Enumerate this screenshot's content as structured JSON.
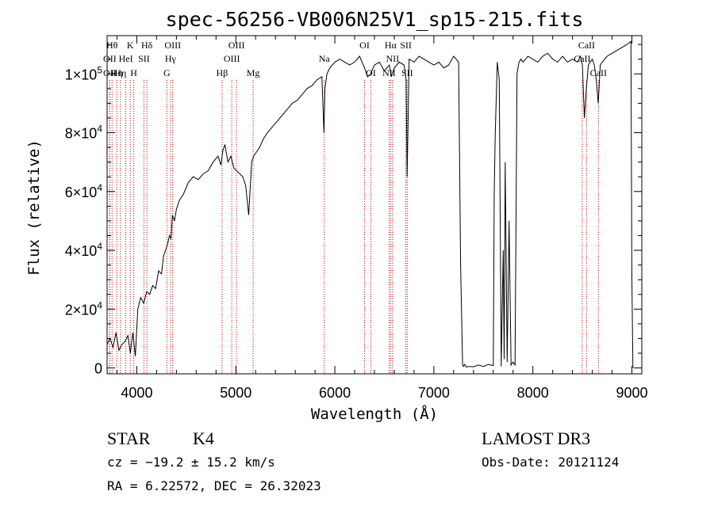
{
  "chart_data": {
    "type": "line",
    "title": "spec-56256-VB006N25V1_sp15-215.fits",
    "xlabel": "Wavelength (Å)",
    "ylabel": "Flux (relative)",
    "xlim": [
      3700,
      9100
    ],
    "ylim": [
      -2000,
      113000
    ],
    "x_ticks": [
      {
        "value": 4000,
        "label": "4000"
      },
      {
        "value": 5000,
        "label": "5000"
      },
      {
        "value": 6000,
        "label": "6000"
      },
      {
        "value": 7000,
        "label": "7000"
      },
      {
        "value": 8000,
        "label": "8000"
      },
      {
        "value": 9000,
        "label": "9000"
      }
    ],
    "y_ticks": [
      {
        "value": 0,
        "mant": "0",
        "exp": ""
      },
      {
        "value": 20000,
        "mant": "2×10",
        "exp": "4"
      },
      {
        "value": 40000,
        "mant": "4×10",
        "exp": "4"
      },
      {
        "value": 60000,
        "mant": "6×10",
        "exp": "4"
      },
      {
        "value": 80000,
        "mant": "8×10",
        "exp": "4"
      },
      {
        "value": 100000,
        "mant": "1×10",
        "exp": "5"
      }
    ],
    "series": [
      {
        "name": "flux",
        "x": [
          3700,
          3730,
          3760,
          3790,
          3820,
          3850,
          3880,
          3910,
          3935,
          3960,
          3985,
          4010,
          4040,
          4070,
          4100,
          4130,
          4160,
          4190,
          4220,
          4250,
          4270,
          4290,
          4310,
          4330,
          4345,
          4360,
          4380,
          4400,
          4430,
          4470,
          4520,
          4570,
          4620,
          4670,
          4720,
          4770,
          4820,
          4850,
          4870,
          4890,
          4920,
          4950,
          4980,
          5010,
          5040,
          5070,
          5100,
          5130,
          5160,
          5180,
          5200,
          5240,
          5280,
          5320,
          5370,
          5420,
          5470,
          5520,
          5570,
          5620,
          5670,
          5720,
          5770,
          5820,
          5870,
          5890,
          5900,
          5920,
          5950,
          6000,
          6050,
          6100,
          6150,
          6200,
          6250,
          6300,
          6330,
          6360,
          6400,
          6450,
          6500,
          6550,
          6570,
          6600,
          6650,
          6700,
          6720,
          6730,
          6750,
          6800,
          6850,
          6900,
          6950,
          7000,
          7050,
          7100,
          7150,
          7200,
          7250,
          7270,
          7290,
          7300,
          7310,
          7320,
          7330,
          7350,
          7400,
          7450,
          7500,
          7550,
          7600,
          7610,
          7620,
          7640,
          7660,
          7680,
          7700,
          7710,
          7720,
          7740,
          7760,
          7780,
          7800,
          7820,
          7840,
          7860,
          7880,
          7900,
          7950,
          8000,
          8050,
          8100,
          8150,
          8200,
          8250,
          8300,
          8350,
          8400,
          8450,
          8480,
          8500,
          8520,
          8540,
          8560,
          8580,
          8600,
          8620,
          8640,
          8660,
          8680,
          8700,
          8750,
          8800,
          8850,
          8900,
          8950,
          8990,
          9000,
          9010
        ],
        "y": [
          8000,
          10000,
          7000,
          12000,
          6000,
          8000,
          9000,
          11000,
          5000,
          12000,
          4000,
          20000,
          24000,
          22000,
          26000,
          25000,
          28000,
          27000,
          33000,
          32000,
          38000,
          40000,
          42000,
          45000,
          44000,
          52000,
          50000,
          54000,
          57000,
          59000,
          63000,
          65000,
          64000,
          66000,
          67000,
          70000,
          72000,
          69000,
          74000,
          76000,
          70000,
          72000,
          68000,
          67000,
          66000,
          65000,
          62000,
          52000,
          70000,
          72000,
          73000,
          75000,
          78000,
          80000,
          82000,
          84000,
          86000,
          88000,
          90000,
          91000,
          93000,
          95000,
          96000,
          98000,
          99000,
          80000,
          95000,
          100000,
          102000,
          104000,
          105000,
          104000,
          103000,
          104000,
          106000,
          102000,
          99000,
          100000,
          103000,
          104000,
          101000,
          103000,
          99000,
          102000,
          104000,
          103000,
          98000,
          65000,
          105000,
          104000,
          106000,
          105000,
          104000,
          103000,
          104000,
          102000,
          103000,
          106000,
          104000,
          35000,
          1000,
          500,
          1200,
          800,
          300,
          500,
          400,
          1000,
          500,
          1200,
          800,
          60000,
          80000,
          104000,
          98000,
          500,
          40000,
          3000,
          70000,
          2000,
          50000,
          1000,
          2000,
          1000,
          100000,
          104000,
          105000,
          104000,
          106000,
          105000,
          104000,
          106000,
          107000,
          105000,
          104000,
          106000,
          104000,
          105000,
          104000,
          106000,
          103000,
          85000,
          95000,
          103000,
          104000,
          105000,
          103000,
          98000,
          90000,
          103000,
          104000,
          106000,
          107000,
          108000,
          109000,
          110000,
          111000,
          30000,
          0
        ]
      }
    ],
    "lines": [
      {
        "x": 3750,
        "label": "Hθ",
        "row": 0,
        "color": "#cc0000"
      },
      {
        "x": 3727,
        "label": "OII",
        "row": 1,
        "color": "#cc0000"
      },
      {
        "x": 3727,
        "label": "OII",
        "row": 2,
        "color": "#cc0000"
      },
      {
        "x": 3798,
        "label": "Hη",
        "row": 2,
        "color": "#cc0000"
      },
      {
        "x": 3835,
        "label": "Hη",
        "row": 2,
        "color": "#cc0000"
      },
      {
        "x": 3889,
        "label": "HeI",
        "row": 1,
        "color": "#cc0000"
      },
      {
        "x": 3934,
        "label": "K",
        "row": 0,
        "color": "#cc0000"
      },
      {
        "x": 3969,
        "label": "H",
        "row": 2,
        "color": "#cc0000"
      },
      {
        "x": 4072,
        "label": "SII",
        "row": 1,
        "color": "#cc0000"
      },
      {
        "x": 4102,
        "label": "Hδ",
        "row": 0,
        "color": "#cc0000"
      },
      {
        "x": 4304,
        "label": "G",
        "row": 2,
        "color": "#cc0000"
      },
      {
        "x": 4340,
        "label": "Hγ",
        "row": 1,
        "color": "#cc0000"
      },
      {
        "x": 4363,
        "label": "OIII",
        "row": 0,
        "color": "#cc0000"
      },
      {
        "x": 4861,
        "label": "Hβ",
        "row": 2,
        "color": "#cc0000"
      },
      {
        "x": 4959,
        "label": "OIII",
        "row": 1,
        "color": "#cc0000"
      },
      {
        "x": 5007,
        "label": "OIII",
        "row": 0,
        "color": "#cc0000"
      },
      {
        "x": 5175,
        "label": "Mg",
        "row": 2,
        "color": "#cc0000"
      },
      {
        "x": 5893,
        "label": "Na",
        "row": 1,
        "color": "#cc0000"
      },
      {
        "x": 6300,
        "label": "OI",
        "row": 0,
        "color": "#cc0000"
      },
      {
        "x": 6364,
        "label": "OI",
        "row": 2,
        "color": "#cc0000"
      },
      {
        "x": 6548,
        "label": "NII",
        "row": 2,
        "color": "#cc0000"
      },
      {
        "x": 6563,
        "label": "Hα",
        "row": 0,
        "color": "#cc0000"
      },
      {
        "x": 6583,
        "label": "NII",
        "row": 1,
        "color": "#cc0000"
      },
      {
        "x": 6717,
        "label": "SII",
        "row": 0,
        "color": "#cc0000"
      },
      {
        "x": 6731,
        "label": "SII",
        "row": 2,
        "color": "#cc0000"
      },
      {
        "x": 8498,
        "label": "CaII",
        "row": 1,
        "color": "#cc0000"
      },
      {
        "x": 8542,
        "label": "CaII",
        "row": 0,
        "color": "#cc0000"
      },
      {
        "x": 8662,
        "label": "CaII",
        "row": 2,
        "color": "#cc0000"
      }
    ]
  },
  "info": {
    "object_class": "STAR",
    "subclass": "K4",
    "survey": "LAMOST DR3",
    "cz": "cz = −19.2 ± 15.2 km/s",
    "obs_date": "Obs-Date: 20121124",
    "radec": "RA =   6.22572, DEC =  26.32023"
  }
}
